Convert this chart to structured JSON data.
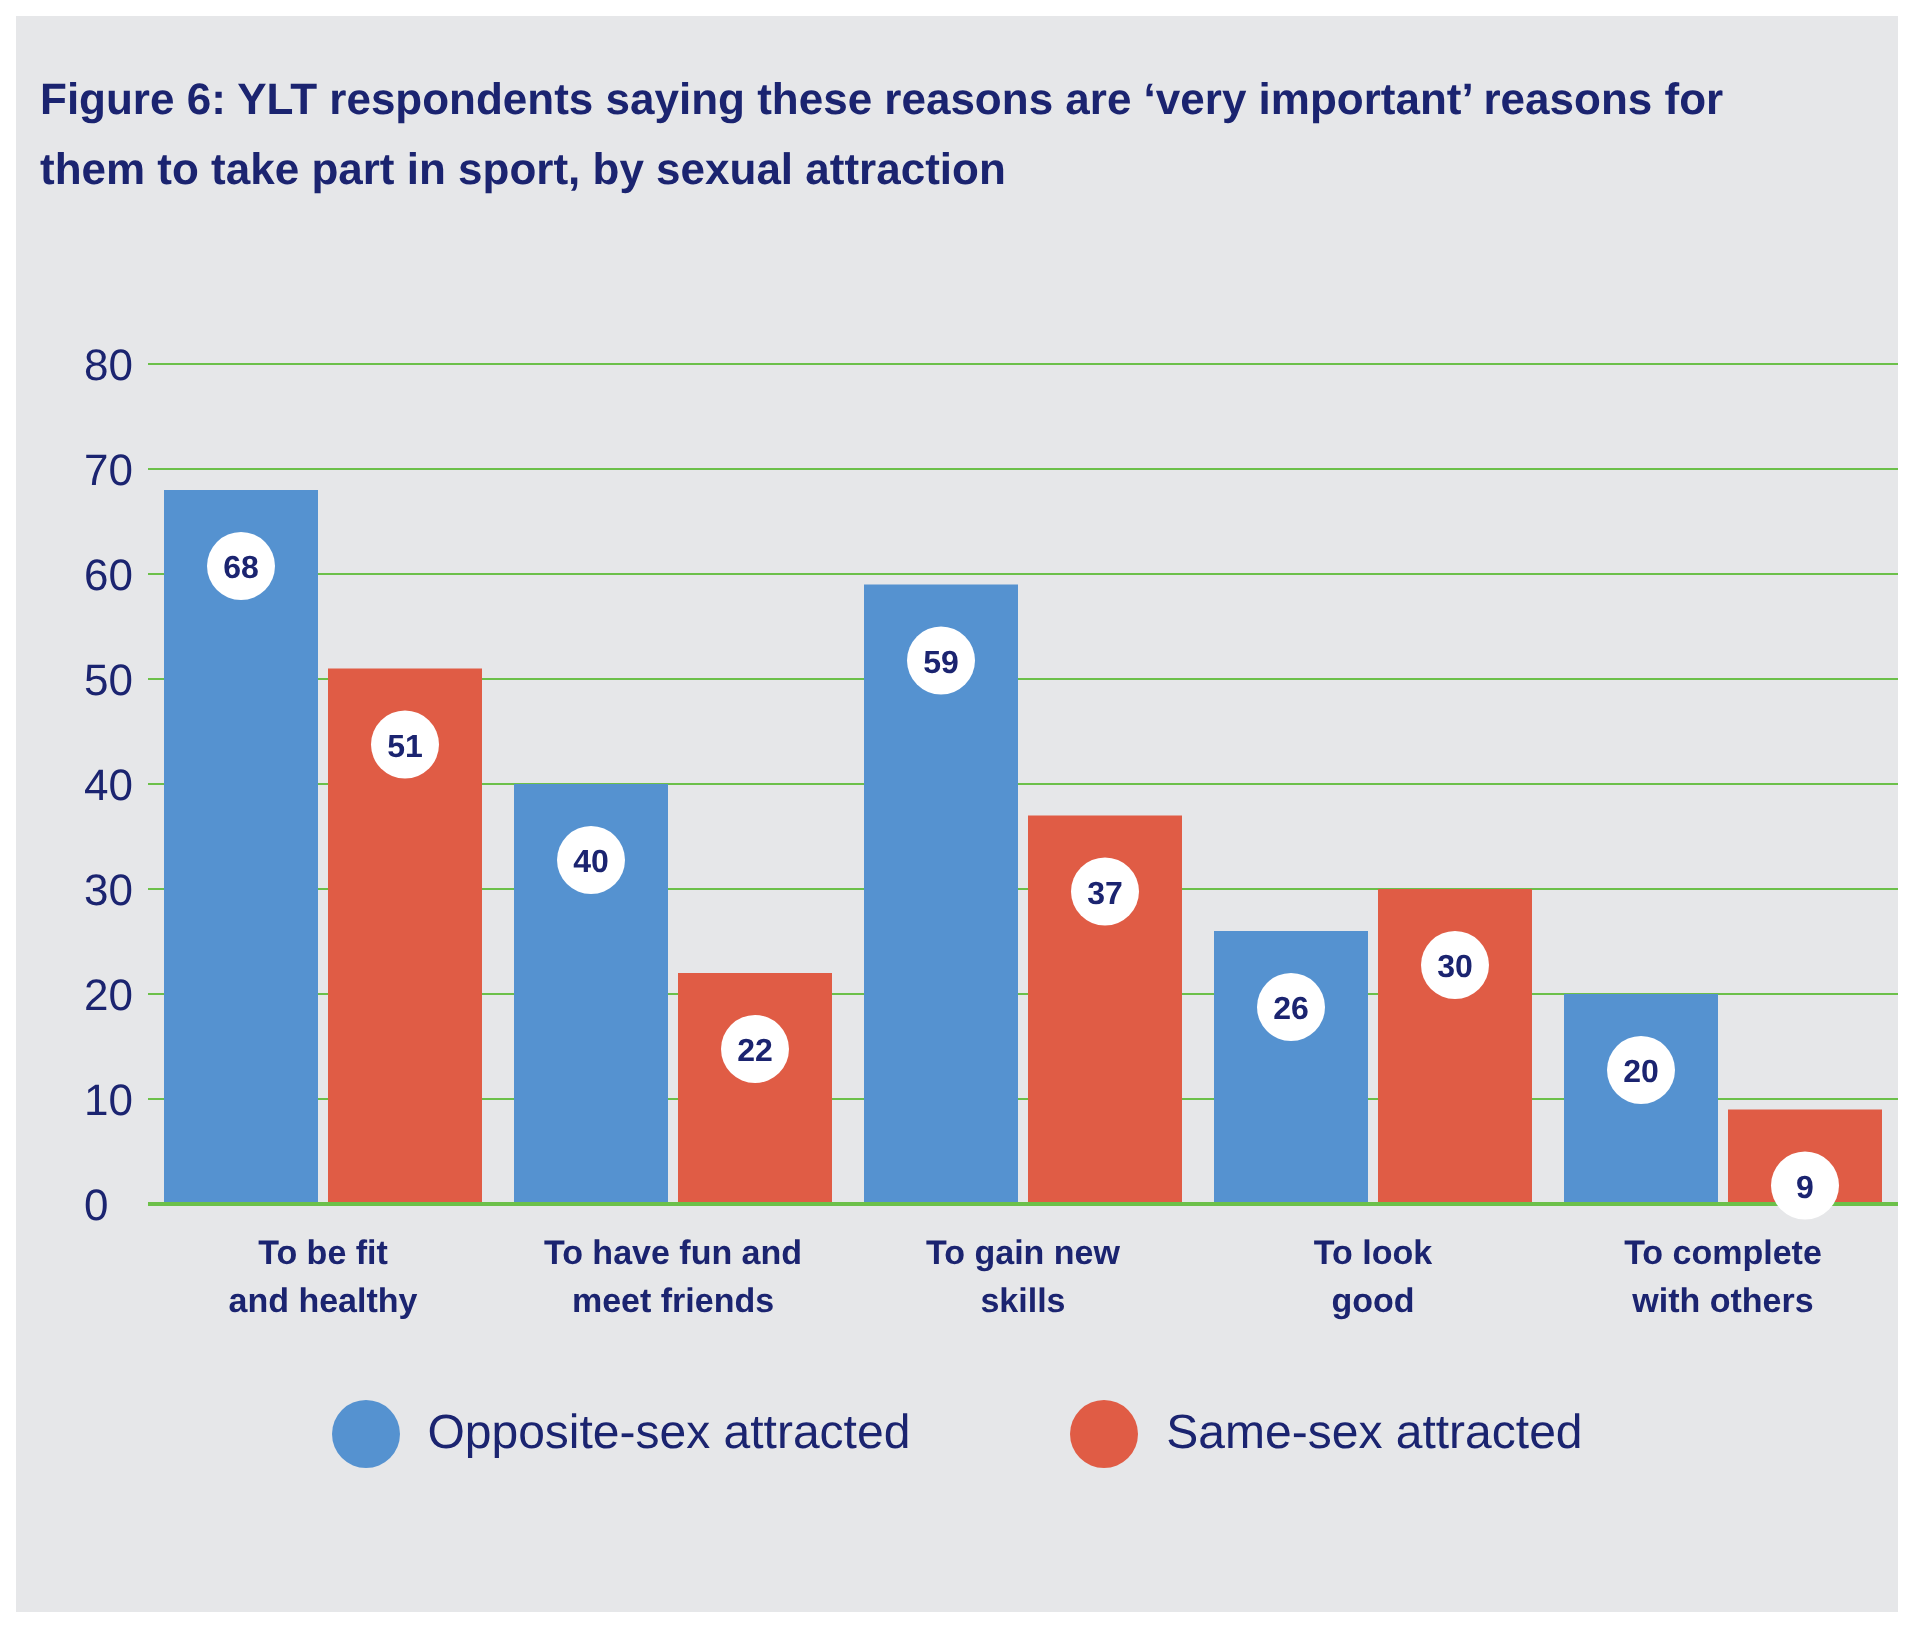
{
  "chart_data": {
    "type": "bar",
    "title": "Figure 6: YLT respondents saying these reasons are ‘very important’ reasons for them to take part in sport, by sexual attraction",
    "categories": [
      "To be fit\nand healthy",
      "To have fun and\nmeet friends",
      "To gain new\nskills",
      "To look\ngood",
      "To complete\nwith others"
    ],
    "series": [
      {
        "name": "Opposite-sex attracted",
        "color": "#5592d0",
        "values": [
          68,
          40,
          59,
          26,
          20
        ]
      },
      {
        "name": "Same-sex attracted",
        "color": "#e05c45",
        "values": [
          51,
          22,
          37,
          30,
          9
        ]
      }
    ],
    "ylim": [
      0,
      80
    ],
    "yticks": [
      0,
      10,
      20,
      30,
      40,
      50,
      60,
      70,
      80
    ],
    "grid": "y",
    "legend": "bottom",
    "data_labels": true
  }
}
